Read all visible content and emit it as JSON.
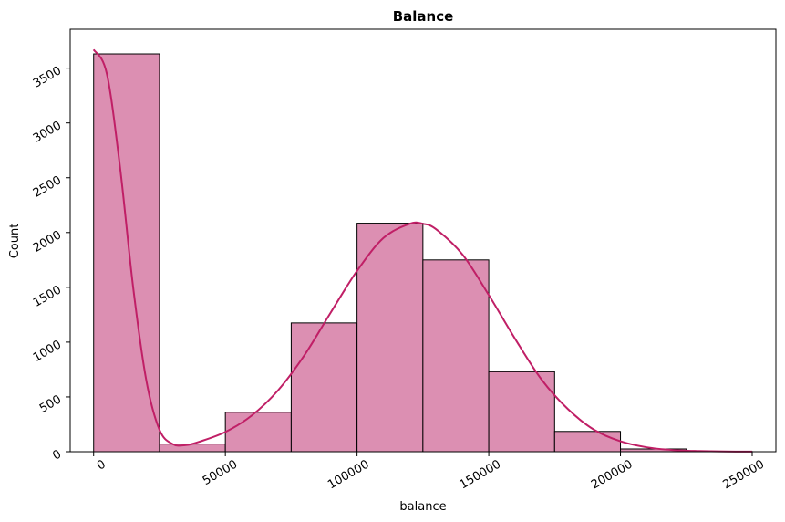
{
  "chart_data": {
    "type": "bar",
    "title": "Balance",
    "xlabel": "balance",
    "ylabel": "Count",
    "bins": [
      {
        "start": 0,
        "end": 25000,
        "count": 3630
      },
      {
        "start": 25000,
        "end": 50000,
        "count": 70
      },
      {
        "start": 50000,
        "end": 75000,
        "count": 360
      },
      {
        "start": 75000,
        "end": 100000,
        "count": 1175
      },
      {
        "start": 100000,
        "end": 125000,
        "count": 2085
      },
      {
        "start": 125000,
        "end": 150000,
        "count": 1750
      },
      {
        "start": 150000,
        "end": 175000,
        "count": 730
      },
      {
        "start": 175000,
        "end": 200000,
        "count": 185
      },
      {
        "start": 200000,
        "end": 225000,
        "count": 25
      },
      {
        "start": 225000,
        "end": 250000,
        "count": 2
      }
    ],
    "kde": {
      "x": [
        0,
        5000,
        10000,
        15000,
        20000,
        25000,
        30000,
        35000,
        40000,
        50000,
        60000,
        70000,
        80000,
        90000,
        100000,
        110000,
        120000,
        125000,
        130000,
        140000,
        150000,
        160000,
        170000,
        180000,
        190000,
        200000,
        210000,
        220000,
        230000,
        240000,
        250000
      ],
      "y": [
        3670,
        3450,
        2600,
        1500,
        650,
        200,
        70,
        60,
        90,
        180,
        330,
        560,
        880,
        1270,
        1650,
        1950,
        2080,
        2080,
        2030,
        1800,
        1430,
        1030,
        660,
        390,
        200,
        95,
        40,
        15,
        6,
        2,
        1
      ]
    },
    "xticks": [
      "0",
      "50000",
      "100000",
      "150000",
      "200000",
      "250000"
    ],
    "xtick_values": [
      0,
      50000,
      100000,
      150000,
      200000,
      250000
    ],
    "yticks": [
      "0",
      "500",
      "1000",
      "1500",
      "2000",
      "2500",
      "3000",
      "3500"
    ],
    "ytick_values": [
      0,
      500,
      1000,
      1500,
      2000,
      2500,
      3000,
      3500
    ],
    "xlim": [
      -8900,
      259000
    ],
    "ylim": [
      0,
      3855
    ],
    "grid": false,
    "bar_color": "#dc8fb2",
    "bar_edge_color": "#000000",
    "kde_color": "#c01f66"
  }
}
